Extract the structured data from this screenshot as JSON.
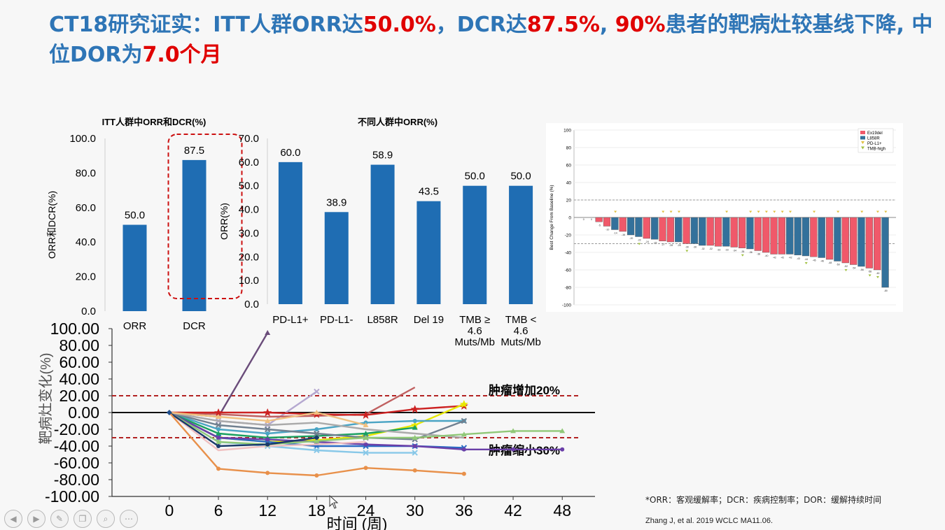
{
  "slide": {
    "title_parts": [
      {
        "text": "CT18研究证实：ITT人群ORR达",
        "highlight": false
      },
      {
        "text": "50.0%",
        "highlight": true
      },
      {
        "text": "，DCR达",
        "highlight": false
      },
      {
        "text": "87.5%",
        "highlight": true
      },
      {
        "text": ", ",
        "highlight": false
      },
      {
        "text": "90%",
        "highlight": true
      },
      {
        "text": "患者的靶病灶较基线下降, 中位DOR为",
        "highlight": false
      },
      {
        "text": "7.0个月",
        "highlight": true
      }
    ],
    "footnote": "*ORR：客观缓解率；DCR：疾病控制率；DOR：缓解持续时间",
    "citation": "Zhang J, et al. 2019 WCLC MA11.06.",
    "colors": {
      "title": "#2e75b6",
      "highlight": "#e00000",
      "bar": "#1f6db3",
      "waterfall_red": "#f0596a",
      "waterfall_blue": "#33719b",
      "dashed_red": "#b22222"
    },
    "controls": [
      "arrow-left-icon",
      "arrow-right-icon",
      "pen-icon",
      "copy-icon",
      "zoom-icon",
      "more-icon"
    ]
  },
  "chart_data": [
    {
      "id": "itt",
      "type": "bar",
      "title": "ITT人群中ORR和DCR(%)",
      "ylabel": "ORR和DCR(%)",
      "xlabel": "",
      "categories": [
        "ORR",
        "DCR"
      ],
      "values": [
        50.0,
        87.5
      ],
      "value_labels": [
        "50.0",
        "87.5"
      ],
      "ylim": [
        0,
        100
      ],
      "yticks": [
        "0.0",
        "20.0",
        "40.0",
        "60.0",
        "80.0",
        "100.0"
      ],
      "highlight_box": "DCR"
    },
    {
      "id": "subgroup",
      "type": "bar",
      "title": "不同人群中ORR(%)",
      "ylabel": "ORR(%)",
      "xlabel": "",
      "categories": [
        [
          "PD-L1+"
        ],
        [
          "PD-L1-"
        ],
        [
          "L858R"
        ],
        [
          "Del 19"
        ],
        [
          "TMB ≥",
          "4.6",
          "Muts/Mb"
        ],
        [
          "TMB <",
          "4.6",
          "Muts/Mb"
        ]
      ],
      "values": [
        60.0,
        38.9,
        58.9,
        43.5,
        50.0,
        50.0
      ],
      "value_labels": [
        "60.0",
        "38.9",
        "58.9",
        "43.5",
        "50.0",
        "50.0"
      ],
      "ylim": [
        0,
        70
      ],
      "yticks": [
        "0.0",
        "10.0",
        "20.0",
        "30.0",
        "40.0",
        "50.0",
        "60.0",
        "70.0"
      ]
    },
    {
      "id": "waterfall",
      "type": "bar",
      "ylabel": "Best Change From Baseline (%)",
      "ylim": [
        -100,
        100
      ],
      "yticks": [
        "-100",
        "-80",
        "-60",
        "-40",
        "-20",
        "0",
        "20",
        "40",
        "60",
        "80",
        "100"
      ],
      "reference_lines": [
        20,
        -30
      ],
      "legend": [
        "Ex19del",
        "L858R",
        "PD-L1+",
        "TMB-high"
      ],
      "legend_position": "top-right",
      "series": [
        {
          "name": "change",
          "values": [
            0,
            0,
            -5,
            -10,
            -14,
            -16,
            -20,
            -22,
            -24,
            -25,
            -27,
            -28,
            -28,
            -30,
            -30,
            -32,
            -32,
            -33,
            -33,
            -34,
            -35,
            -36,
            -38,
            -40,
            -42,
            -42,
            -42,
            -43,
            -44,
            -45,
            -46,
            -48,
            -50,
            -52,
            -54,
            -56,
            -58,
            -60,
            -80
          ]
        },
        {
          "name": "mutation",
          "values": [
            "n",
            "n",
            "r",
            "r",
            "b",
            "r",
            "b",
            "b",
            "r",
            "b",
            "r",
            "r",
            "b",
            "r",
            "b",
            "b",
            "r",
            "r",
            "b",
            "r",
            "r",
            "b",
            "r",
            "r",
            "r",
            "r",
            "b",
            "b",
            "b",
            "r",
            "b",
            "r",
            "b",
            "r",
            "r",
            "b",
            "r",
            "r",
            "b"
          ]
        },
        {
          "name": "pdl1_markers",
          "values": [
            4,
            10,
            11,
            12,
            18,
            21,
            22,
            23,
            24,
            25,
            26,
            29,
            32,
            35,
            37,
            38
          ]
        },
        {
          "name": "tmb_markers",
          "values": [
            7,
            13,
            20,
            28,
            33,
            36,
            37
          ]
        }
      ]
    },
    {
      "id": "spider",
      "type": "line",
      "ylabel": "靶病灶变化(%)",
      "xlabel": "时间 (周)",
      "ylim": [
        -100,
        100
      ],
      "yticks": [
        "-100.00",
        "-80.00",
        "-60.00",
        "-40.00",
        "-20.00",
        "0.00",
        "20.00",
        "40.00",
        "60.00",
        "80.00",
        "100.00"
      ],
      "xticks": [
        "0",
        "6",
        "12",
        "18",
        "24",
        "30",
        "36",
        "42",
        "48"
      ],
      "reference_lines": [
        20,
        -30
      ],
      "annotations": [
        "肿瘤增加20%",
        "肿瘤缩小30%"
      ],
      "series": [
        {
          "color": "#6a4c7a",
          "marker": "tri",
          "points": [
            [
              0,
              0
            ],
            [
              6,
              -5
            ],
            [
              12,
              95
            ]
          ]
        },
        {
          "color": "#b5a8d0",
          "marker": "x",
          "points": [
            [
              0,
              0
            ],
            [
              6,
              -10
            ],
            [
              12,
              -15
            ],
            [
              18,
              25
            ]
          ]
        },
        {
          "color": "#c06060",
          "marker": "none",
          "points": [
            [
              0,
              0
            ],
            [
              6,
              -2
            ],
            [
              12,
              -5
            ],
            [
              18,
              -4
            ],
            [
              24,
              -2
            ],
            [
              30,
              30
            ]
          ]
        },
        {
          "color": "#cc2222",
          "marker": "star",
          "points": [
            [
              0,
              0
            ],
            [
              6,
              0
            ],
            [
              12,
              0
            ],
            [
              18,
              -2
            ],
            [
              24,
              -3
            ],
            [
              30,
              4
            ],
            [
              36,
              8
            ]
          ]
        },
        {
          "color": "#e8e800",
          "marker": "star",
          "points": [
            [
              0,
              0
            ],
            [
              6,
              -30
            ],
            [
              12,
              -35
            ],
            [
              18,
              -33
            ],
            [
              24,
              -28
            ],
            [
              30,
              -15
            ],
            [
              36,
              10
            ]
          ]
        },
        {
          "color": "#4aa4c4",
          "marker": "dot",
          "points": [
            [
              0,
              0
            ],
            [
              6,
              -20
            ],
            [
              12,
              -25
            ],
            [
              18,
              -20
            ],
            [
              24,
              -12
            ],
            [
              30,
              -10
            ],
            [
              36,
              -10
            ]
          ]
        },
        {
          "color": "#1aa060",
          "marker": "tri",
          "points": [
            [
              0,
              0
            ],
            [
              6,
              -25
            ],
            [
              12,
              -30
            ],
            [
              18,
              -28
            ],
            [
              24,
              -25
            ],
            [
              30,
              -18
            ]
          ]
        },
        {
          "color": "#708090",
          "marker": "x",
          "points": [
            [
              0,
              0
            ],
            [
              6,
              -15
            ],
            [
              12,
              -20
            ],
            [
              18,
              -25
            ],
            [
              24,
              -30
            ],
            [
              30,
              -32
            ],
            [
              36,
              -10
            ]
          ]
        },
        {
          "color": "#aaaaaa",
          "marker": "none",
          "points": [
            [
              0,
              0
            ],
            [
              6,
              -10
            ],
            [
              12,
              -15
            ],
            [
              18,
              -12
            ],
            [
              24,
              -20
            ],
            [
              30,
              -25
            ],
            [
              36,
              -30
            ]
          ]
        },
        {
          "color": "#2a6cc4",
          "marker": "x",
          "points": [
            [
              0,
              0
            ],
            [
              6,
              -30
            ],
            [
              12,
              -35
            ],
            [
              18,
              -40
            ],
            [
              24,
              -40
            ],
            [
              30,
              -40
            ],
            [
              36,
              -42
            ]
          ]
        },
        {
          "color": "#88c8e8",
          "marker": "x",
          "points": [
            [
              0,
              0
            ],
            [
              6,
              -35
            ],
            [
              12,
              -40
            ],
            [
              18,
              -45
            ],
            [
              24,
              -48
            ],
            [
              30,
              -48
            ]
          ]
        },
        {
          "color": "#6a3fa8",
          "marker": "dot",
          "points": [
            [
              0,
              0
            ],
            [
              6,
              -30
            ],
            [
              12,
              -32
            ],
            [
              18,
              -35
            ],
            [
              24,
              -38
            ],
            [
              30,
              -40
            ],
            [
              36,
              -44
            ],
            [
              42,
              -44
            ],
            [
              48,
              -44
            ]
          ]
        },
        {
          "color": "#f0c0c0",
          "marker": "none",
          "points": [
            [
              0,
              0
            ],
            [
              6,
              -45
            ],
            [
              12,
              -40
            ],
            [
              18,
              -38
            ],
            [
              24,
              -35
            ]
          ]
        },
        {
          "color": "#90c878",
          "marker": "tri",
          "points": [
            [
              0,
              0
            ],
            [
              6,
              -35
            ],
            [
              12,
              -38
            ],
            [
              18,
              -34
            ],
            [
              24,
              -30
            ],
            [
              30,
              -30
            ],
            [
              36,
              -26
            ],
            [
              42,
              -22
            ],
            [
              48,
              -22
            ]
          ]
        },
        {
          "color": "#f0c080",
          "marker": "tri",
          "points": [
            [
              0,
              0
            ],
            [
              6,
              -5
            ],
            [
              12,
              -10
            ],
            [
              18,
              0
            ],
            [
              24,
              -15
            ]
          ]
        },
        {
          "color": "#1a3a6a",
          "marker": "dot",
          "points": [
            [
              0,
              0
            ],
            [
              6,
              -40
            ],
            [
              12,
              -38
            ],
            [
              18,
              -30
            ]
          ]
        },
        {
          "color": "#e8904a",
          "marker": "dot",
          "points": [
            [
              0,
              0
            ],
            [
              6,
              -67
            ],
            [
              12,
              -72
            ],
            [
              18,
              -75
            ],
            [
              24,
              -66
            ],
            [
              30,
              -69
            ],
            [
              36,
              -73
            ]
          ]
        }
      ]
    }
  ]
}
